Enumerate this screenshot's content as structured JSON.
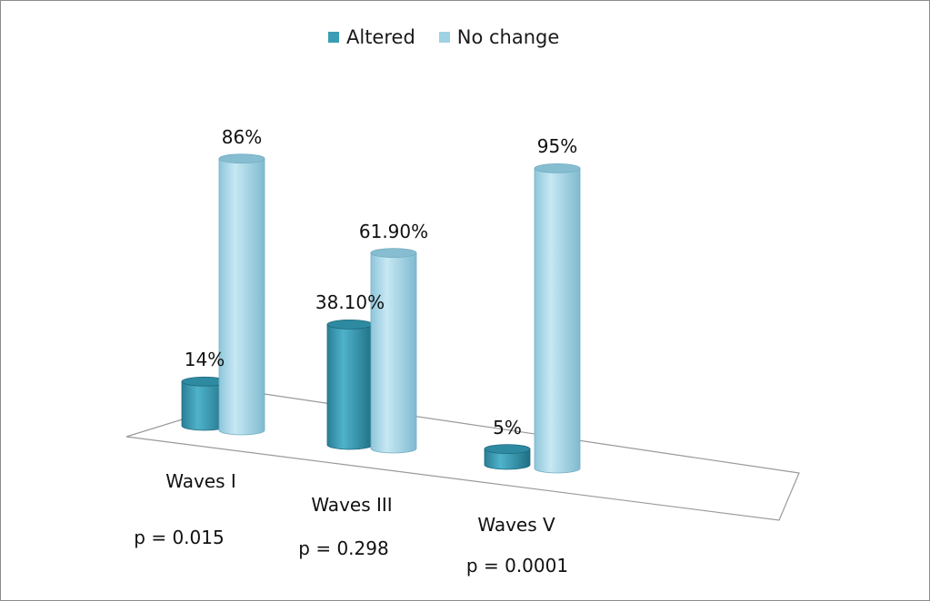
{
  "chart_data": {
    "type": "bar",
    "title": "",
    "xlabel": "",
    "ylabel": "",
    "ylim": [
      0,
      100
    ],
    "grid": false,
    "legend_position": "top-center",
    "categories": [
      "Waves I",
      "Waves III",
      "Waves V"
    ],
    "p_values": [
      "p = 0.015",
      "p = 0.298",
      "p = 0.0001"
    ],
    "series": [
      {
        "name": "Altered",
        "color": "#3a9db5",
        "values": [
          14,
          38.1,
          5
        ],
        "labels": [
          "14%",
          "38.10%",
          "5%"
        ]
      },
      {
        "name": "No change",
        "color": "#9fd2e4",
        "values": [
          86,
          61.9,
          95
        ],
        "labels": [
          "86%",
          "61.90%",
          "95%"
        ]
      }
    ]
  }
}
